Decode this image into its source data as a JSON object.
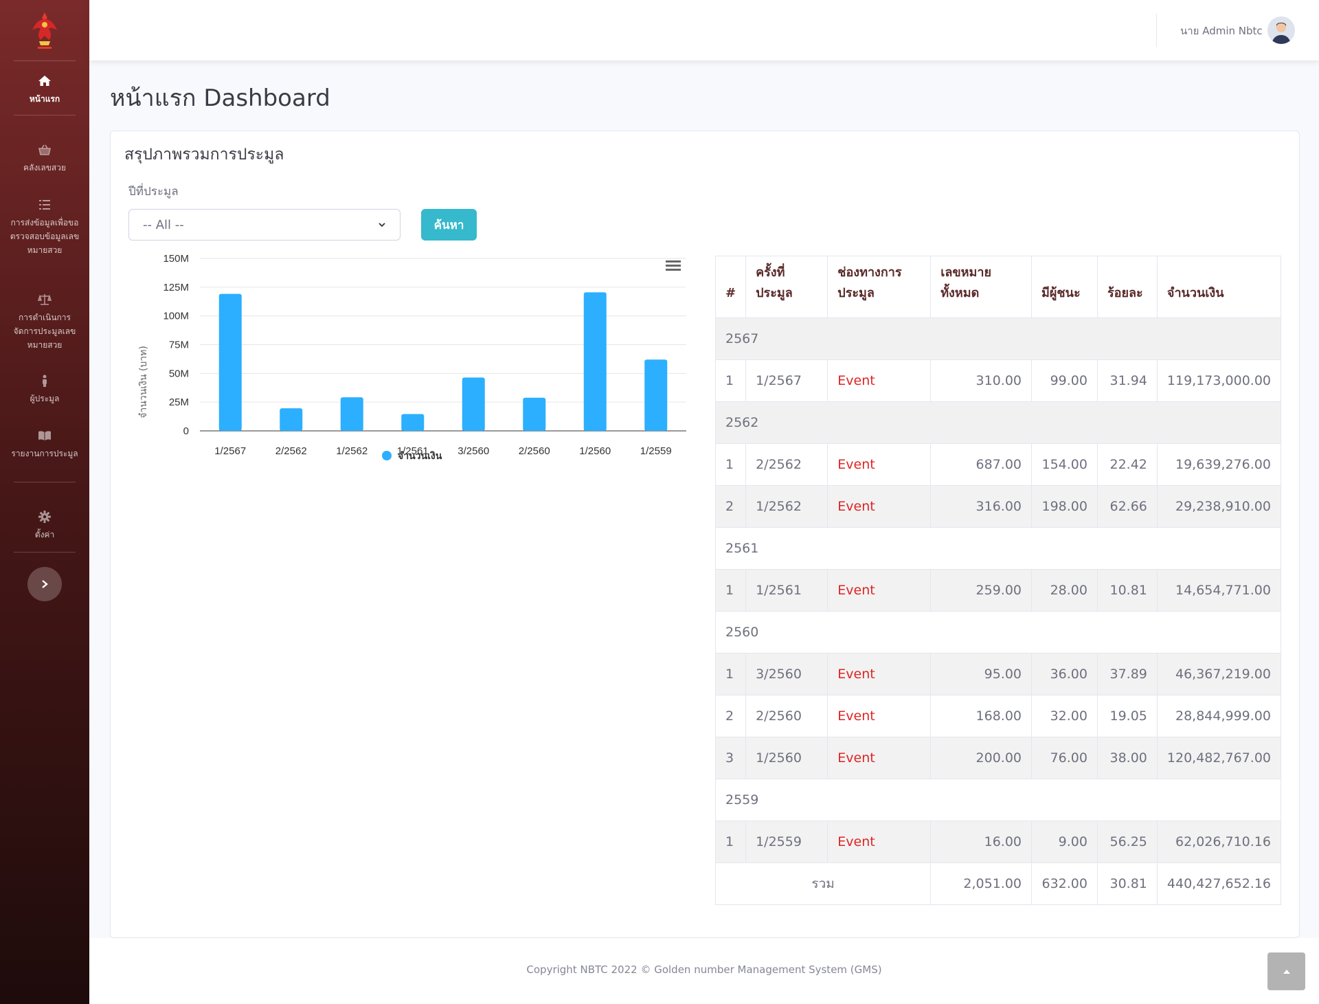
{
  "sidebar": {
    "items": [
      {
        "label": "หน้าแรก"
      },
      {
        "label": "คลังเลขสวย"
      },
      {
        "label": "การส่งข้อมูลเพื่อขอตรวจสอบข้อมูลเลขหมายสวย"
      },
      {
        "label": "การดำเนินการจัดการประมูลเลขหมายสวย"
      },
      {
        "label": "ผู้ประมูล"
      },
      {
        "label": "รายงานการประมูล"
      },
      {
        "label": "ตั้งค่า"
      }
    ]
  },
  "header": {
    "user_name": "นาย Admin Nbtc"
  },
  "page": {
    "title": "หน้าแรก Dashboard"
  },
  "card": {
    "title": "สรุปภาพรวมการประมูล",
    "filter_label": "ปีที่ประมูล",
    "select_value": "-- All --",
    "search_label": "ค้นหา"
  },
  "chart_data": {
    "type": "bar",
    "categories": [
      "1/2567",
      "2/2562",
      "1/2562",
      "1/2561",
      "3/2560",
      "2/2560",
      "1/2560",
      "1/2559"
    ],
    "series": [
      {
        "name": "จำนวนเงิน",
        "values": [
          119173000.0,
          19639276.0,
          29238910.0,
          14654771.0,
          46367219.0,
          28844999.0,
          120482767.0,
          62026710.16
        ]
      }
    ],
    "ylabel": "จำนวนเงิน (บาท)",
    "ylim": [
      0,
      150000000
    ],
    "yticks": [
      "0",
      "25M",
      "50M",
      "75M",
      "100M",
      "125M",
      "150M"
    ],
    "color": "#2caffe",
    "legend": "bottom-center",
    "grid": true
  },
  "table": {
    "headers": [
      "#",
      "ครั้งที่ประมูล",
      "ช่องทางการประมูล",
      "เลขหมายทั้งหมด",
      "มีผู้ชนะ",
      "ร้อยละ",
      "จำนวนเงิน"
    ],
    "groups": [
      {
        "year": "2567",
        "rows": [
          {
            "no": "1",
            "round": "1/2567",
            "channel": "Event",
            "total": "310.00",
            "winners": "99.00",
            "percent": "31.94",
            "amount": "119,173,000.00"
          }
        ]
      },
      {
        "year": "2562",
        "rows": [
          {
            "no": "1",
            "round": "2/2562",
            "channel": "Event",
            "total": "687.00",
            "winners": "154.00",
            "percent": "22.42",
            "amount": "19,639,276.00"
          },
          {
            "no": "2",
            "round": "1/2562",
            "channel": "Event",
            "total": "316.00",
            "winners": "198.00",
            "percent": "62.66",
            "amount": "29,238,910.00"
          }
        ]
      },
      {
        "year": "2561",
        "rows": [
          {
            "no": "1",
            "round": "1/2561",
            "channel": "Event",
            "total": "259.00",
            "winners": "28.00",
            "percent": "10.81",
            "amount": "14,654,771.00"
          }
        ]
      },
      {
        "year": "2560",
        "rows": [
          {
            "no": "1",
            "round": "3/2560",
            "channel": "Event",
            "total": "95.00",
            "winners": "36.00",
            "percent": "37.89",
            "amount": "46,367,219.00"
          },
          {
            "no": "2",
            "round": "2/2560",
            "channel": "Event",
            "total": "168.00",
            "winners": "32.00",
            "percent": "19.05",
            "amount": "28,844,999.00"
          },
          {
            "no": "3",
            "round": "1/2560",
            "channel": "Event",
            "total": "200.00",
            "winners": "76.00",
            "percent": "38.00",
            "amount": "120,482,767.00"
          }
        ]
      },
      {
        "year": "2559",
        "rows": [
          {
            "no": "1",
            "round": "1/2559",
            "channel": "Event",
            "total": "16.00",
            "winners": "9.00",
            "percent": "56.25",
            "amount": "62,026,710.16"
          }
        ]
      }
    ],
    "total_row": {
      "label": "รวม",
      "total": "2,051.00",
      "winners": "632.00",
      "percent": "30.81",
      "amount": "440,427,652.16"
    }
  },
  "footer": {
    "copyright": "Copyright NBTC 2022 © Golden number Management System (GMS)"
  }
}
